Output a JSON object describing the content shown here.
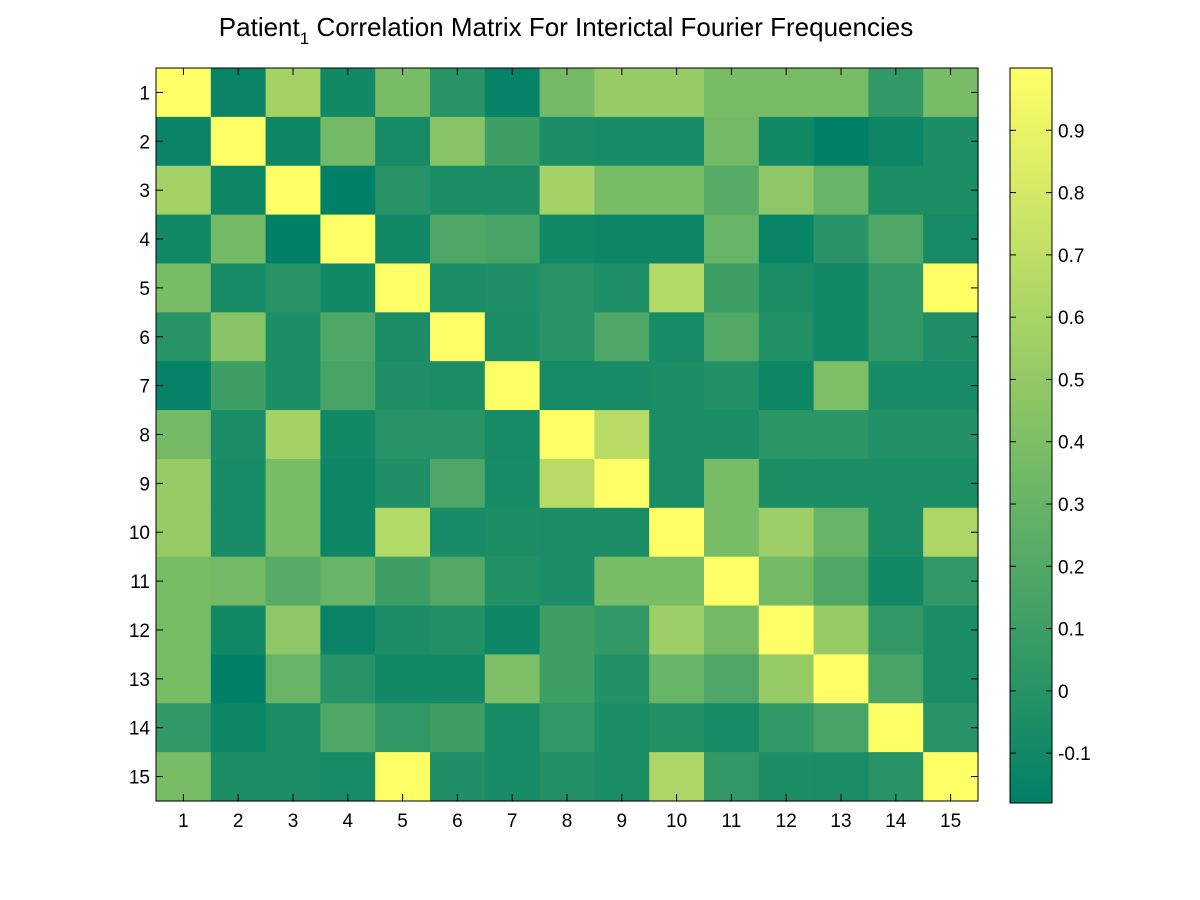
{
  "chart_data": {
    "type": "heatmap",
    "title": {
      "prefix": "Patient",
      "subscript": "1",
      "rest": " Correlation Matrix For Interictal Fourier Frequencies"
    },
    "row_labels": [
      "1",
      "2",
      "3",
      "4",
      "5",
      "6",
      "7",
      "8",
      "9",
      "10",
      "11",
      "12",
      "13",
      "14",
      "15"
    ],
    "col_labels": [
      "1",
      "2",
      "3",
      "4",
      "5",
      "6",
      "7",
      "8",
      "9",
      "10",
      "11",
      "12",
      "13",
      "14",
      "15"
    ],
    "colorbar": {
      "min": -0.18,
      "max": 1.0,
      "ticks": [
        -0.1,
        0,
        0.1,
        0.2,
        0.3,
        0.4,
        0.5,
        0.6,
        0.7,
        0.8,
        0.9
      ],
      "tick_labels": [
        "-0.1",
        "0",
        "0.1",
        "0.2",
        "0.3",
        "0.4",
        "0.5",
        "0.6",
        "0.7",
        "0.8",
        "0.9"
      ],
      "colors": [
        "#008066",
        "#ffff66"
      ]
    },
    "values": [
      [
        1.0,
        -0.14,
        0.58,
        -0.1,
        0.38,
        0.0,
        -0.15,
        0.35,
        0.52,
        0.52,
        0.38,
        0.38,
        0.38,
        0.05,
        0.38
      ],
      [
        -0.14,
        1.0,
        -0.12,
        0.35,
        -0.08,
        0.45,
        0.1,
        -0.06,
        -0.07,
        -0.07,
        0.35,
        -0.1,
        -0.18,
        -0.12,
        -0.05
      ],
      [
        0.58,
        -0.12,
        1.0,
        -0.18,
        0.0,
        -0.05,
        -0.05,
        0.58,
        0.38,
        0.38,
        0.22,
        0.48,
        0.3,
        -0.05,
        -0.05
      ],
      [
        -0.1,
        0.35,
        -0.18,
        1.0,
        -0.1,
        0.18,
        0.15,
        -0.1,
        -0.12,
        -0.12,
        0.3,
        -0.14,
        0.0,
        0.18,
        -0.08
      ],
      [
        0.38,
        -0.08,
        0.0,
        -0.1,
        1.0,
        -0.06,
        -0.04,
        0.0,
        -0.04,
        0.65,
        0.1,
        -0.05,
        -0.1,
        0.05,
        1.0
      ],
      [
        0.0,
        0.45,
        -0.05,
        0.18,
        -0.06,
        1.0,
        -0.05,
        0.0,
        0.18,
        -0.07,
        0.2,
        -0.02,
        -0.1,
        0.05,
        -0.04
      ],
      [
        -0.15,
        0.1,
        -0.05,
        0.15,
        -0.04,
        -0.05,
        1.0,
        -0.08,
        -0.07,
        -0.05,
        -0.02,
        -0.12,
        0.4,
        -0.07,
        -0.07
      ],
      [
        0.35,
        -0.06,
        0.58,
        -0.1,
        0.0,
        0.0,
        -0.08,
        1.0,
        0.67,
        -0.06,
        -0.05,
        0.02,
        0.02,
        -0.02,
        -0.02
      ],
      [
        0.52,
        -0.07,
        0.38,
        -0.12,
        -0.04,
        0.18,
        -0.07,
        0.67,
        1.0,
        -0.06,
        0.38,
        -0.05,
        -0.05,
        -0.05,
        -0.05
      ],
      [
        0.52,
        -0.07,
        0.38,
        -0.12,
        0.65,
        -0.07,
        -0.05,
        -0.06,
        -0.06,
        1.0,
        0.38,
        0.55,
        0.3,
        -0.05,
        0.62
      ],
      [
        0.38,
        0.35,
        0.22,
        0.3,
        0.1,
        0.2,
        -0.02,
        -0.05,
        0.38,
        0.38,
        1.0,
        0.35,
        0.18,
        -0.1,
        0.05
      ],
      [
        0.38,
        -0.1,
        0.48,
        -0.14,
        -0.05,
        -0.02,
        -0.12,
        0.1,
        0.05,
        0.55,
        0.35,
        1.0,
        0.52,
        0.05,
        -0.05
      ],
      [
        0.38,
        -0.18,
        0.3,
        0.0,
        -0.1,
        -0.1,
        0.4,
        0.1,
        -0.02,
        0.3,
        0.18,
        0.52,
        1.0,
        0.15,
        -0.06
      ],
      [
        0.05,
        -0.12,
        -0.05,
        0.18,
        0.05,
        0.1,
        -0.07,
        0.05,
        -0.05,
        -0.02,
        -0.08,
        0.05,
        0.15,
        1.0,
        0.0
      ],
      [
        0.38,
        -0.05,
        -0.05,
        -0.08,
        1.0,
        -0.04,
        -0.07,
        -0.02,
        -0.05,
        0.62,
        0.05,
        -0.05,
        -0.06,
        0.0,
        1.0
      ]
    ]
  }
}
